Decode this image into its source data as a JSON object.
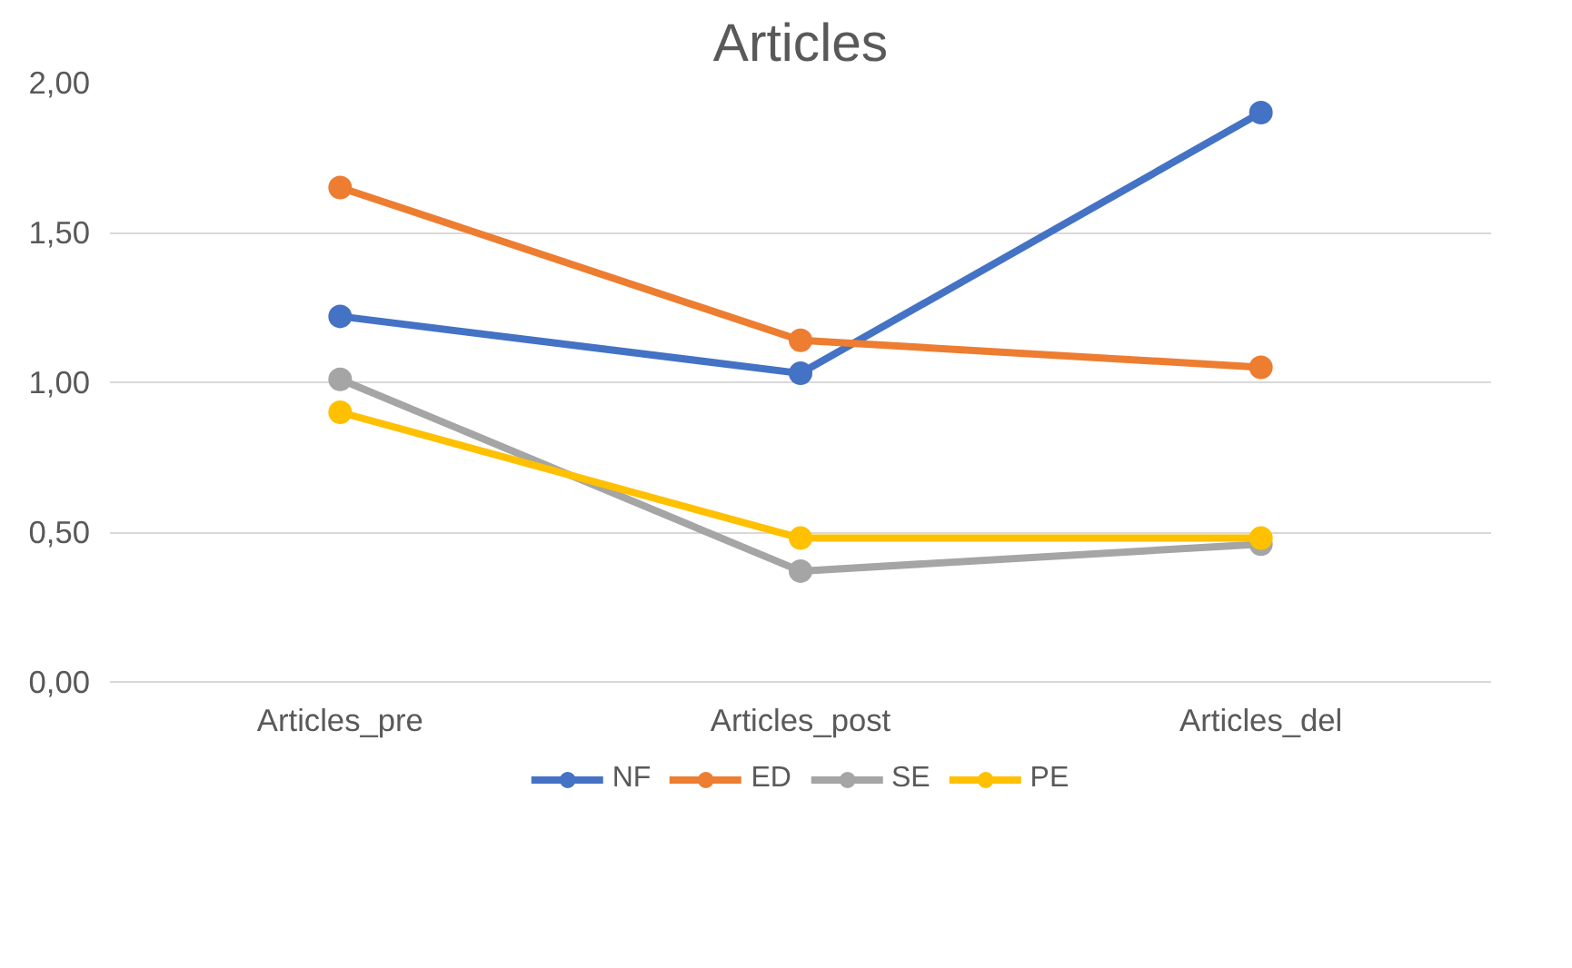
{
  "chart_data": {
    "type": "line",
    "title": "Articles",
    "categories": [
      "Articles_pre",
      "Articles_post",
      "Articles_del"
    ],
    "series": [
      {
        "name": "NF",
        "color": "#4472c4",
        "values": [
          1.22,
          1.03,
          1.9
        ]
      },
      {
        "name": "ED",
        "color": "#ed7d31",
        "values": [
          1.65,
          1.14,
          1.05
        ]
      },
      {
        "name": "SE",
        "color": "#a5a5a5",
        "values": [
          1.01,
          0.37,
          0.46
        ]
      },
      {
        "name": "PE",
        "color": "#ffc000",
        "values": [
          0.9,
          0.48,
          0.48
        ]
      }
    ],
    "ylim": [
      0,
      2
    ],
    "yticks": [
      {
        "value": 0,
        "label": "0,00"
      },
      {
        "value": 0.5,
        "label": "0,50"
      },
      {
        "value": 1,
        "label": "1,00"
      },
      {
        "value": 1.5,
        "label": "1,50"
      },
      {
        "value": 2,
        "label": "2,00"
      }
    ],
    "grid": "y",
    "legend": "bottom",
    "marker": "circle",
    "line_style": "solid"
  }
}
